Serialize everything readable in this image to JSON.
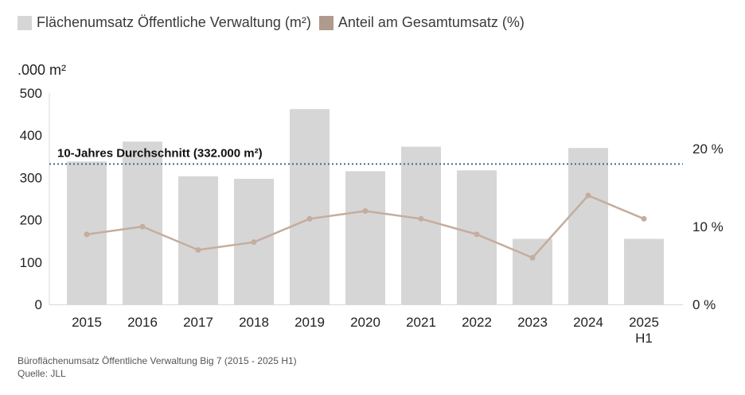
{
  "chart_data": {
    "type": "bar",
    "categories": [
      "2015",
      "2016",
      "2017",
      "2018",
      "2019",
      "2020",
      "2021",
      "2022",
      "2023",
      "2024",
      "2025 H1"
    ],
    "series": [
      {
        "name": "Flächenumsatz Öffentliche Verwaltung (m²)",
        "type": "bar",
        "axis": "left",
        "color": "#d6d6d6",
        "values": [
          338,
          385,
          303,
          297,
          462,
          315,
          373,
          317,
          155,
          370,
          155
        ]
      },
      {
        "name": "Anteil am Gesamtumsatz (%)",
        "type": "line",
        "axis": "right",
        "color": "#c4ad9f",
        "legend_color": "#b09a8c",
        "values": [
          9,
          10,
          7,
          8,
          11,
          12,
          11,
          9,
          6,
          14,
          11
        ]
      }
    ],
    "y_left": {
      "unit_label": ".000 m²",
      "ylim": [
        0,
        500
      ],
      "ticks": [
        "0",
        "100",
        "200",
        "300",
        "400",
        "500"
      ]
    },
    "y_right": {
      "ylim": [
        0,
        27.17
      ],
      "ticks": [
        {
          "value": 0,
          "label": "0 %"
        },
        {
          "value": 10,
          "label": "10 %"
        },
        {
          "value": 20,
          "label": "20 %"
        }
      ]
    },
    "reference_line": {
      "value": 332,
      "label": "10-Jahres Durchschnitt (332.000 m²)",
      "color": "#3d6a92",
      "style": "dotted"
    },
    "grid": false,
    "legend_position": "top-left"
  },
  "footer": {
    "caption": "Büroflächenumsatz Öffentliche Verwaltung Big 7 (2015 - 2025 H1)",
    "source": "Quelle: JLL"
  }
}
